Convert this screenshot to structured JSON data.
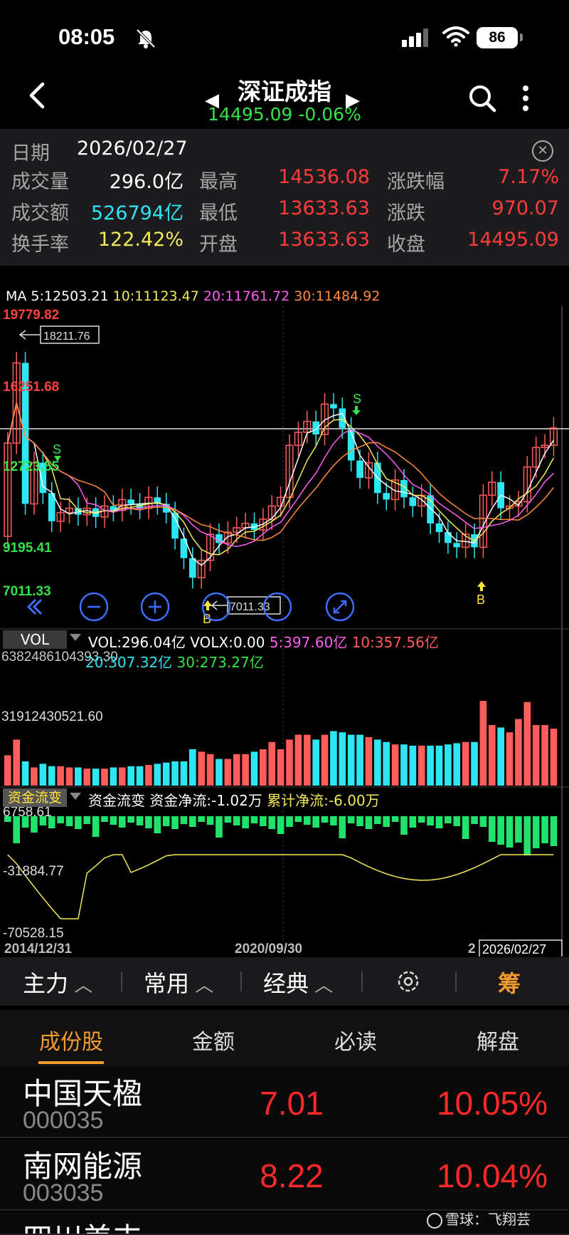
{
  "status_bar": {
    "time": "08:05",
    "battery": "86"
  },
  "nav": {
    "back_icon": "chevron-left-icon",
    "title": "深证成指",
    "quote": "14495.09 -0.06%"
  },
  "info": {
    "date_label": "日期",
    "date_value": "2026/02/27",
    "rows": [
      [
        {
          "label": "成交量",
          "value": "296.0亿",
          "color": "#ffffff"
        },
        {
          "label": "最高",
          "value": "14536.08",
          "color": "#ff3b3b"
        },
        {
          "label": "涨跌幅",
          "value": "7.17%",
          "color": "#ff3b3b"
        }
      ],
      [
        {
          "label": "成交额",
          "value": "526794亿",
          "color": "#2fe3f5"
        },
        {
          "label": "最低",
          "value": "13633.63",
          "color": "#ff3b3b"
        },
        {
          "label": "涨跌",
          "value": "970.07",
          "color": "#ff3b3b"
        }
      ],
      [
        {
          "label": "换手率",
          "value": "122.42%",
          "color": "#f4e95a"
        },
        {
          "label": "开盘",
          "value": "13633.63",
          "color": "#ff3b3b"
        },
        {
          "label": "收盘",
          "value": "14495.09",
          "color": "#ff3b3b"
        }
      ]
    ]
  },
  "ma_line": {
    "ma5": "MA 5:12503.21",
    "ma10": "10:11123.47",
    "ma20": "20:11761.72",
    "ma30": "30:11484.92"
  },
  "kline": {
    "y_labels": [
      "19779.82",
      "16251.68",
      "12723.55",
      "9195.41",
      "7011.33"
    ],
    "y_values": [
      19779.82,
      16251.68,
      12723.55,
      9195.41,
      7011.33
    ],
    "high_callout": "18211.76",
    "low_callout": "7011.33",
    "markers": {
      "sell": "S",
      "buy": "B"
    }
  },
  "vol": {
    "tag": "VOL",
    "line1": {
      "vol": "VOL:296.04亿",
      "volx": "VOLX:0.00",
      "ma5": "5:397.60亿",
      "ma10": "10:357.56亿"
    },
    "line2": {
      "ma20": "20:307.32亿",
      "ma30": "30:273.27亿"
    },
    "axis_top": "6382486104393.30",
    "axis_mid": "31912430521.60"
  },
  "fund": {
    "tag": "资金流变",
    "title": "资金流变",
    "net": "资金净流:-1.02万",
    "cum": "累计净流:-6.00万",
    "axis": [
      "6758.61",
      "-31884.77",
      "-70528.15"
    ]
  },
  "x_axis": {
    "start": "2014/12/31",
    "mid": "2020/09/30",
    "end_prefix": "2",
    "end": "2026/02/27"
  },
  "toolbar": {
    "main": "主力",
    "common": "常用",
    "classic": "经典",
    "chips": "筹"
  },
  "tabs": [
    "成份股",
    "金额",
    "必读",
    "解盘"
  ],
  "stocks": [
    {
      "name": "中国天楹",
      "code": "000035",
      "price": "7.01",
      "pct": "10.05%"
    },
    {
      "name": "南网能源",
      "code": "003035",
      "price": "8.22",
      "pct": "10.04%"
    },
    {
      "name": "四川美丰",
      "code": "",
      "price": "",
      "pct": ""
    }
  ],
  "watermark": "雪球：飞翔芸",
  "colors": {
    "up": "#ff5c5c",
    "down": "#2ee6f2",
    "ma5": "#ffffff",
    "ma10": "#f4e95a",
    "ma20": "#ff5cf0",
    "ma30": "#ff8a3d",
    "buy": "#ffe43a",
    "sell": "#36e24a"
  }
}
